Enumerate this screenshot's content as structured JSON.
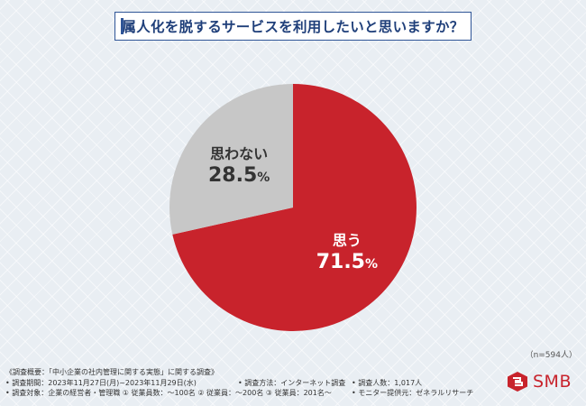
{
  "title": "属人化を脱するサービスを利用したいと思いますか？",
  "chart_data": {
    "type": "pie",
    "title": "属人化を脱するサービスを利用したいと思いますか？",
    "slices": [
      {
        "label": "思う",
        "value": 71.5,
        "display": "71.5%",
        "color": "#c8232c"
      },
      {
        "label": "思わない",
        "value": 28.5,
        "display": "28.5%",
        "color": "#c7c7c7"
      }
    ]
  },
  "sample_size": "（n=594人）",
  "notes": {
    "overview": "《調査概要：「中小企業の社内管理に関する実態」に関する調査》",
    "period": "• 調査期間：2023年11月27日(月)~2023年11月29日(水)",
    "method": "• 調査方法：インターネット調査",
    "respondents": "• 調査人数：1,017人",
    "target": "• 調査対象：企業の経営者・管理職 ① 従業員数：～100名 ② 従業員：～200名 ③ 従業員：201名～",
    "provider": "• モニター提供元：ゼネラルリサーチ"
  },
  "logo": {
    "text": "SMB",
    "icon": "smb-logo-icon",
    "color": "#c8232c"
  }
}
